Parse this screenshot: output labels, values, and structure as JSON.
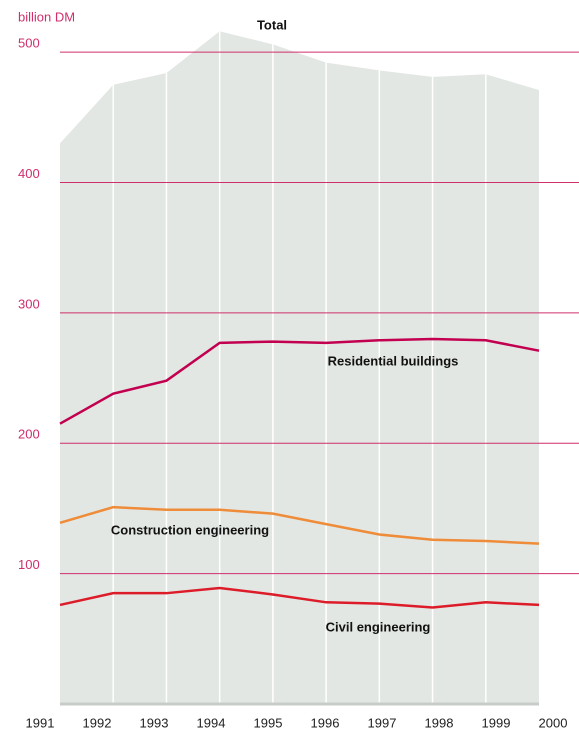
{
  "chart_data": {
    "type": "line",
    "y_label": "billion DM",
    "categories": [
      "1991",
      "1992",
      "1993",
      "1994",
      "1995",
      "1996",
      "1997",
      "1998",
      "1999",
      "2000"
    ],
    "series": [
      {
        "name": "Total",
        "color": "#e3e7e3",
        "area": true,
        "values": [
          430,
          475,
          484,
          516,
          506,
          492,
          486,
          481,
          483,
          471
        ]
      },
      {
        "name": "Residential buildings",
        "color": "#c2004f",
        "values": [
          215,
          238,
          248,
          277,
          278,
          277,
          279,
          280,
          279,
          271
        ]
      },
      {
        "name": "Construction engineering",
        "color": "#ee8c3a",
        "values": [
          139,
          151,
          149,
          149,
          146,
          138,
          130,
          126,
          125,
          123
        ]
      },
      {
        "name": "Civil engineering",
        "color": "#dd1c2a",
        "values": [
          76,
          85,
          85,
          89,
          84,
          78,
          77,
          74,
          78,
          76
        ]
      }
    ],
    "ylim": [
      0,
      540
    ],
    "yticks": [
      100,
      200,
      300,
      400,
      500
    ],
    "grid": true,
    "grid_color": "#cf2f6c"
  }
}
